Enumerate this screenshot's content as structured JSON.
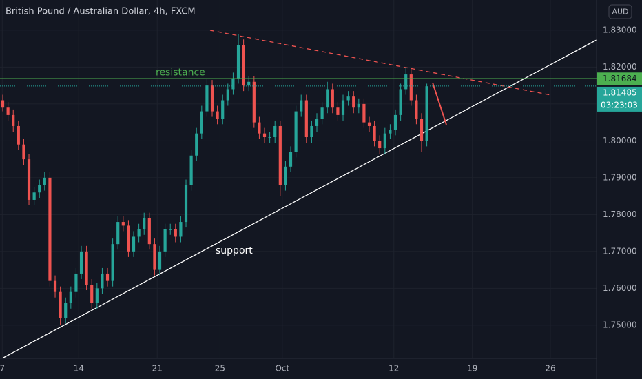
{
  "chart_data": {
    "type": "candlestick",
    "title": "British Pound / Australian Dollar, 4h, FXCM",
    "currency": "AUD",
    "up_color": "#26a69a",
    "down_color": "#ef5350",
    "grid": true,
    "ylim": [
      1.741,
      1.8382
    ],
    "yticks": [
      {
        "value": 1.83,
        "label": "1.83000"
      },
      {
        "value": 1.82,
        "label": "1.82000"
      },
      {
        "value": 1.81,
        "label": "1.81000"
      },
      {
        "value": 1.8,
        "label": "1.80000"
      },
      {
        "value": 1.79,
        "label": "1.79000"
      },
      {
        "value": 1.78,
        "label": "1.78000"
      },
      {
        "value": 1.77,
        "label": "1.77000"
      },
      {
        "value": 1.76,
        "label": "1.76000"
      },
      {
        "value": 1.75,
        "label": "1.75000"
      }
    ],
    "xlim": [
      -0.53,
      113.42
    ],
    "xticks": [
      {
        "value": -0.1,
        "label": "7"
      },
      {
        "value": 14.5,
        "label": "14"
      },
      {
        "value": 29.5,
        "label": "21"
      },
      {
        "value": 41.5,
        "label": "25"
      },
      {
        "value": 53.4,
        "label": "Oct"
      },
      {
        "value": 74.7,
        "label": "12"
      },
      {
        "value": 89.7,
        "label": "19"
      },
      {
        "value": 104.6,
        "label": "26"
      }
    ],
    "open": [
      1.811,
      1.809,
      1.807,
      1.804,
      1.799,
      1.795,
      1.784,
      1.786,
      1.788,
      1.79,
      1.762,
      1.759,
      1.752,
      1.756,
      1.759,
      1.764,
      1.77,
      1.761,
      1.756,
      1.76,
      1.764,
      1.762,
      1.772,
      1.778,
      1.777,
      1.77,
      1.774,
      1.776,
      1.779,
      1.772,
      1.765,
      1.77,
      1.776,
      1.776,
      1.774,
      1.778,
      1.788,
      1.796,
      1.802,
      1.808,
      1.815,
      1.808,
      1.806,
      1.811,
      1.814,
      1.817,
      1.826,
      1.815,
      1.816,
      1.805,
      1.802,
      1.801,
      1.801,
      1.804,
      1.788,
      1.793,
      1.797,
      1.808,
      1.811,
      1.801,
      1.804,
      1.806,
      1.809,
      1.814,
      1.809,
      1.807,
      1.811,
      1.812,
      1.809,
      1.81,
      1.805,
      1.804,
      1.8,
      1.798,
      1.802,
      1.803,
      1.807,
      1.814,
      1.818,
      1.811,
      1.806,
      1.8
    ],
    "high": [
      1.8125,
      1.8105,
      1.8085,
      1.8055,
      1.8005,
      1.7965,
      1.7875,
      1.7895,
      1.7915,
      1.7915,
      1.7635,
      1.7605,
      1.7575,
      1.7605,
      1.7655,
      1.7715,
      1.7715,
      1.7625,
      1.7615,
      1.7655,
      1.7655,
      1.7735,
      1.7795,
      1.7795,
      1.7785,
      1.7755,
      1.7775,
      1.7805,
      1.7805,
      1.7735,
      1.7715,
      1.7775,
      1.7775,
      1.7775,
      1.7795,
      1.7895,
      1.7975,
      1.8035,
      1.8095,
      1.817,
      1.8165,
      1.8095,
      1.8125,
      1.8155,
      1.8185,
      1.829,
      1.8275,
      1.8175,
      1.8175,
      1.8065,
      1.8035,
      1.8025,
      1.8055,
      1.8055,
      1.7945,
      1.7985,
      1.8095,
      1.8125,
      1.8125,
      1.8055,
      1.8075,
      1.8105,
      1.816,
      1.8155,
      1.8105,
      1.8125,
      1.8135,
      1.8135,
      1.8115,
      1.8115,
      1.8065,
      1.8055,
      1.8015,
      1.8035,
      1.8045,
      1.8085,
      1.8155,
      1.82,
      1.8195,
      1.8125,
      1.8075,
      1.8155
    ],
    "low": [
      1.808,
      1.8055,
      1.8025,
      1.7975,
      1.7935,
      1.7825,
      1.7825,
      1.7845,
      1.7865,
      1.7605,
      1.7575,
      1.75,
      1.7505,
      1.7545,
      1.7575,
      1.7625,
      1.7595,
      1.7545,
      1.7545,
      1.7585,
      1.7605,
      1.7605,
      1.7705,
      1.7755,
      1.7685,
      1.7685,
      1.7725,
      1.7745,
      1.7705,
      1.7635,
      1.7635,
      1.7685,
      1.7745,
      1.7725,
      1.7725,
      1.7765,
      1.7865,
      1.7945,
      1.8005,
      1.8065,
      1.8065,
      1.8045,
      1.8045,
      1.8095,
      1.8125,
      1.8155,
      1.8135,
      1.8135,
      1.8035,
      1.8005,
      1.7995,
      1.7995,
      1.7995,
      1.785,
      1.7865,
      1.7915,
      1.7955,
      1.8065,
      1.7995,
      1.7995,
      1.8025,
      1.8045,
      1.8075,
      1.8075,
      1.8055,
      1.8055,
      1.8095,
      1.8075,
      1.8075,
      1.8035,
      1.8025,
      1.7985,
      1.7965,
      1.7965,
      1.8005,
      1.8015,
      1.8055,
      1.8125,
      1.8095,
      1.8045,
      1.797,
      1.7985
    ],
    "close": [
      1.809,
      1.807,
      1.804,
      1.799,
      1.795,
      1.784,
      1.786,
      1.788,
      1.79,
      1.762,
      1.759,
      1.752,
      1.756,
      1.759,
      1.764,
      1.77,
      1.761,
      1.756,
      1.76,
      1.764,
      1.762,
      1.772,
      1.778,
      1.777,
      1.77,
      1.774,
      1.776,
      1.779,
      1.772,
      1.765,
      1.77,
      1.776,
      1.776,
      1.774,
      1.778,
      1.788,
      1.796,
      1.802,
      1.808,
      1.815,
      1.808,
      1.806,
      1.811,
      1.814,
      1.817,
      1.826,
      1.815,
      1.816,
      1.805,
      1.802,
      1.801,
      1.801,
      1.804,
      1.788,
      1.793,
      1.797,
      1.808,
      1.811,
      1.801,
      1.804,
      1.806,
      1.809,
      1.814,
      1.809,
      1.807,
      1.811,
      1.812,
      1.809,
      1.81,
      1.805,
      1.804,
      1.8,
      1.798,
      1.802,
      1.803,
      1.807,
      1.814,
      1.818,
      1.811,
      1.806,
      1.8,
      1.8148
    ],
    "resistance": {
      "label": "resistance",
      "value": 1.81684,
      "color": "#4caf50"
    },
    "last_price": {
      "value": 1.81485,
      "countdown": "03:23:03",
      "color": "#26a69a"
    },
    "support_label": "support"
  }
}
